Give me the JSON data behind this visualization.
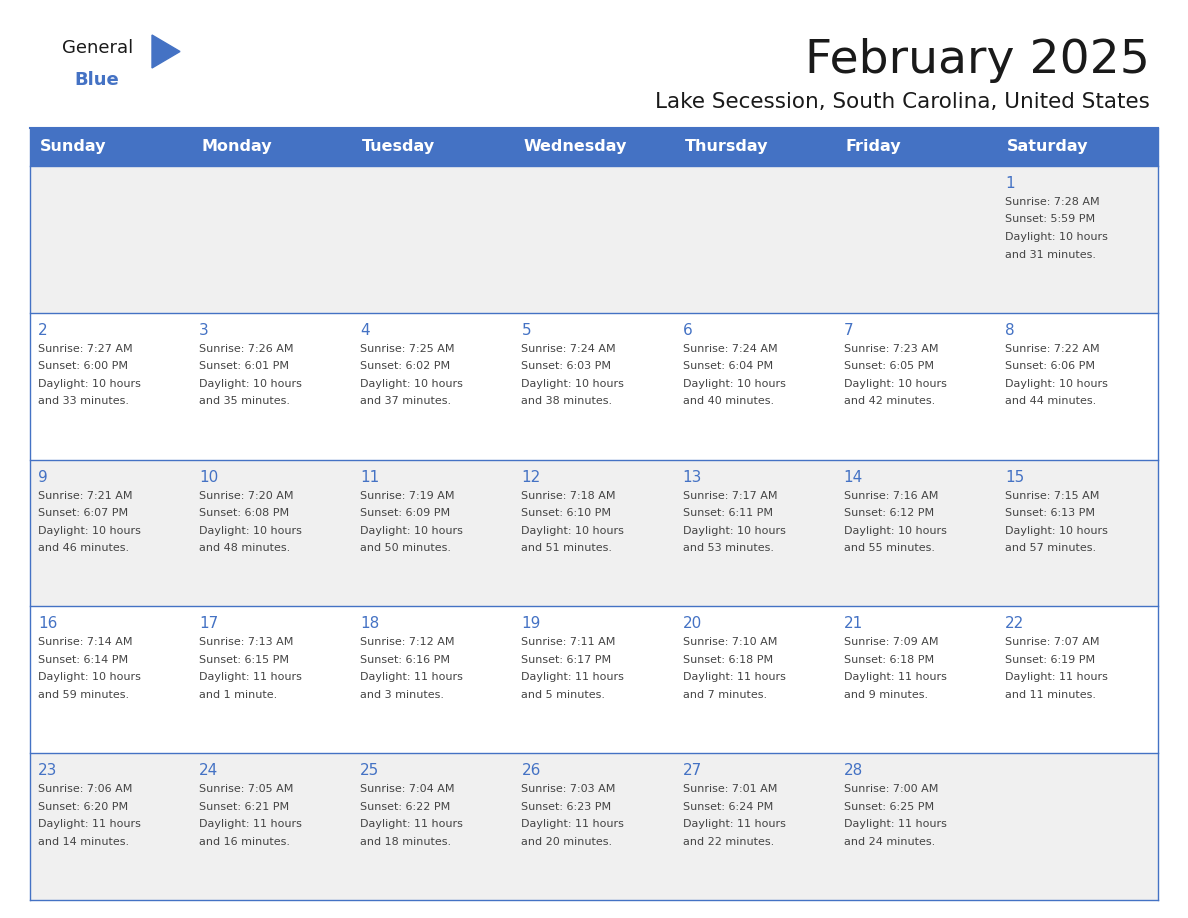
{
  "title": "February 2025",
  "subtitle": "Lake Secession, South Carolina, United States",
  "header_bg": "#4472C4",
  "header_text": "#FFFFFF",
  "cell_bg_light": "#F0F0F0",
  "cell_bg_white": "#FFFFFF",
  "day_headers": [
    "Sunday",
    "Monday",
    "Tuesday",
    "Wednesday",
    "Thursday",
    "Friday",
    "Saturday"
  ],
  "days": [
    {
      "day": 1,
      "col": 6,
      "row": 0,
      "sunrise": "7:28 AM",
      "sunset": "5:59 PM",
      "daylight": "10 hours and 31 minutes."
    },
    {
      "day": 2,
      "col": 0,
      "row": 1,
      "sunrise": "7:27 AM",
      "sunset": "6:00 PM",
      "daylight": "10 hours and 33 minutes."
    },
    {
      "day": 3,
      "col": 1,
      "row": 1,
      "sunrise": "7:26 AM",
      "sunset": "6:01 PM",
      "daylight": "10 hours and 35 minutes."
    },
    {
      "day": 4,
      "col": 2,
      "row": 1,
      "sunrise": "7:25 AM",
      "sunset": "6:02 PM",
      "daylight": "10 hours and 37 minutes."
    },
    {
      "day": 5,
      "col": 3,
      "row": 1,
      "sunrise": "7:24 AM",
      "sunset": "6:03 PM",
      "daylight": "10 hours and 38 minutes."
    },
    {
      "day": 6,
      "col": 4,
      "row": 1,
      "sunrise": "7:24 AM",
      "sunset": "6:04 PM",
      "daylight": "10 hours and 40 minutes."
    },
    {
      "day": 7,
      "col": 5,
      "row": 1,
      "sunrise": "7:23 AM",
      "sunset": "6:05 PM",
      "daylight": "10 hours and 42 minutes."
    },
    {
      "day": 8,
      "col": 6,
      "row": 1,
      "sunrise": "7:22 AM",
      "sunset": "6:06 PM",
      "daylight": "10 hours and 44 minutes."
    },
    {
      "day": 9,
      "col": 0,
      "row": 2,
      "sunrise": "7:21 AM",
      "sunset": "6:07 PM",
      "daylight": "10 hours and 46 minutes."
    },
    {
      "day": 10,
      "col": 1,
      "row": 2,
      "sunrise": "7:20 AM",
      "sunset": "6:08 PM",
      "daylight": "10 hours and 48 minutes."
    },
    {
      "day": 11,
      "col": 2,
      "row": 2,
      "sunrise": "7:19 AM",
      "sunset": "6:09 PM",
      "daylight": "10 hours and 50 minutes."
    },
    {
      "day": 12,
      "col": 3,
      "row": 2,
      "sunrise": "7:18 AM",
      "sunset": "6:10 PM",
      "daylight": "10 hours and 51 minutes."
    },
    {
      "day": 13,
      "col": 4,
      "row": 2,
      "sunrise": "7:17 AM",
      "sunset": "6:11 PM",
      "daylight": "10 hours and 53 minutes."
    },
    {
      "day": 14,
      "col": 5,
      "row": 2,
      "sunrise": "7:16 AM",
      "sunset": "6:12 PM",
      "daylight": "10 hours and 55 minutes."
    },
    {
      "day": 15,
      "col": 6,
      "row": 2,
      "sunrise": "7:15 AM",
      "sunset": "6:13 PM",
      "daylight": "10 hours and 57 minutes."
    },
    {
      "day": 16,
      "col": 0,
      "row": 3,
      "sunrise": "7:14 AM",
      "sunset": "6:14 PM",
      "daylight": "10 hours and 59 minutes."
    },
    {
      "day": 17,
      "col": 1,
      "row": 3,
      "sunrise": "7:13 AM",
      "sunset": "6:15 PM",
      "daylight": "11 hours and 1 minute."
    },
    {
      "day": 18,
      "col": 2,
      "row": 3,
      "sunrise": "7:12 AM",
      "sunset": "6:16 PM",
      "daylight": "11 hours and 3 minutes."
    },
    {
      "day": 19,
      "col": 3,
      "row": 3,
      "sunrise": "7:11 AM",
      "sunset": "6:17 PM",
      "daylight": "11 hours and 5 minutes."
    },
    {
      "day": 20,
      "col": 4,
      "row": 3,
      "sunrise": "7:10 AM",
      "sunset": "6:18 PM",
      "daylight": "11 hours and 7 minutes."
    },
    {
      "day": 21,
      "col": 5,
      "row": 3,
      "sunrise": "7:09 AM",
      "sunset": "6:18 PM",
      "daylight": "11 hours and 9 minutes."
    },
    {
      "day": 22,
      "col": 6,
      "row": 3,
      "sunrise": "7:07 AM",
      "sunset": "6:19 PM",
      "daylight": "11 hours and 11 minutes."
    },
    {
      "day": 23,
      "col": 0,
      "row": 4,
      "sunrise": "7:06 AM",
      "sunset": "6:20 PM",
      "daylight": "11 hours and 14 minutes."
    },
    {
      "day": 24,
      "col": 1,
      "row": 4,
      "sunrise": "7:05 AM",
      "sunset": "6:21 PM",
      "daylight": "11 hours and 16 minutes."
    },
    {
      "day": 25,
      "col": 2,
      "row": 4,
      "sunrise": "7:04 AM",
      "sunset": "6:22 PM",
      "daylight": "11 hours and 18 minutes."
    },
    {
      "day": 26,
      "col": 3,
      "row": 4,
      "sunrise": "7:03 AM",
      "sunset": "6:23 PM",
      "daylight": "11 hours and 20 minutes."
    },
    {
      "day": 27,
      "col": 4,
      "row": 4,
      "sunrise": "7:01 AM",
      "sunset": "6:24 PM",
      "daylight": "11 hours and 22 minutes."
    },
    {
      "day": 28,
      "col": 5,
      "row": 4,
      "sunrise": "7:00 AM",
      "sunset": "6:25 PM",
      "daylight": "11 hours and 24 minutes."
    }
  ],
  "num_rows": 5,
  "logo_text1": "General",
  "logo_text2": "Blue",
  "logo_triangle_color": "#4472C4",
  "logo_text1_color": "#1a1a1a",
  "logo_text2_color": "#4472C4",
  "title_color": "#1a1a1a",
  "subtitle_color": "#1a1a1a",
  "day_number_color": "#4472C4",
  "cell_text_color": "#444444",
  "border_color": "#4472C4"
}
